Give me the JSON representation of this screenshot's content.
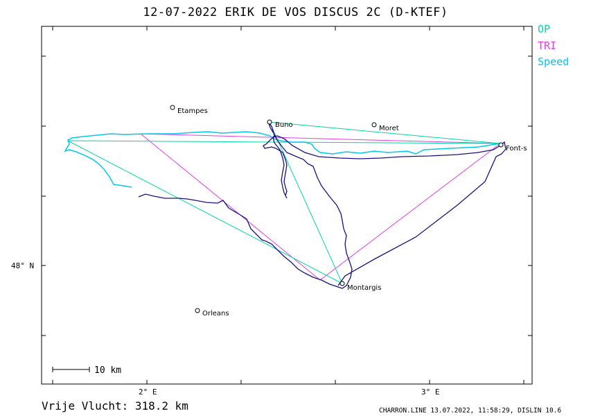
{
  "title": "12-07-2022   ERIK DE VOS   DISCUS 2C (D-KTEF)",
  "legend": [
    {
      "label": "OP",
      "color": "#00d8a0"
    },
    {
      "label": "TRI",
      "color": "#e040e0"
    },
    {
      "label": "Speed",
      "color": "#00c8f0"
    }
  ],
  "axes": {
    "lon_labels": [
      "2° E",
      "3° E"
    ],
    "lat_labels": [
      "48° N"
    ]
  },
  "scale_bar": "10 km",
  "places": [
    {
      "name": "Etampes"
    },
    {
      "name": "Buno"
    },
    {
      "name": "Moret"
    },
    {
      "name": "Font-s"
    },
    {
      "name": "Montargis"
    },
    {
      "name": "Orleans"
    }
  ],
  "footer": {
    "distance": "Vrije Vlucht:  318.2 km",
    "credit": "CHARRON.LINE 13.07.2022, 11:58:29, DISLIN 10.6"
  },
  "colors": {
    "track": "#1a1080",
    "op": "#00d8a0",
    "tri": "#e040e0",
    "speed": "#00c8f0"
  }
}
